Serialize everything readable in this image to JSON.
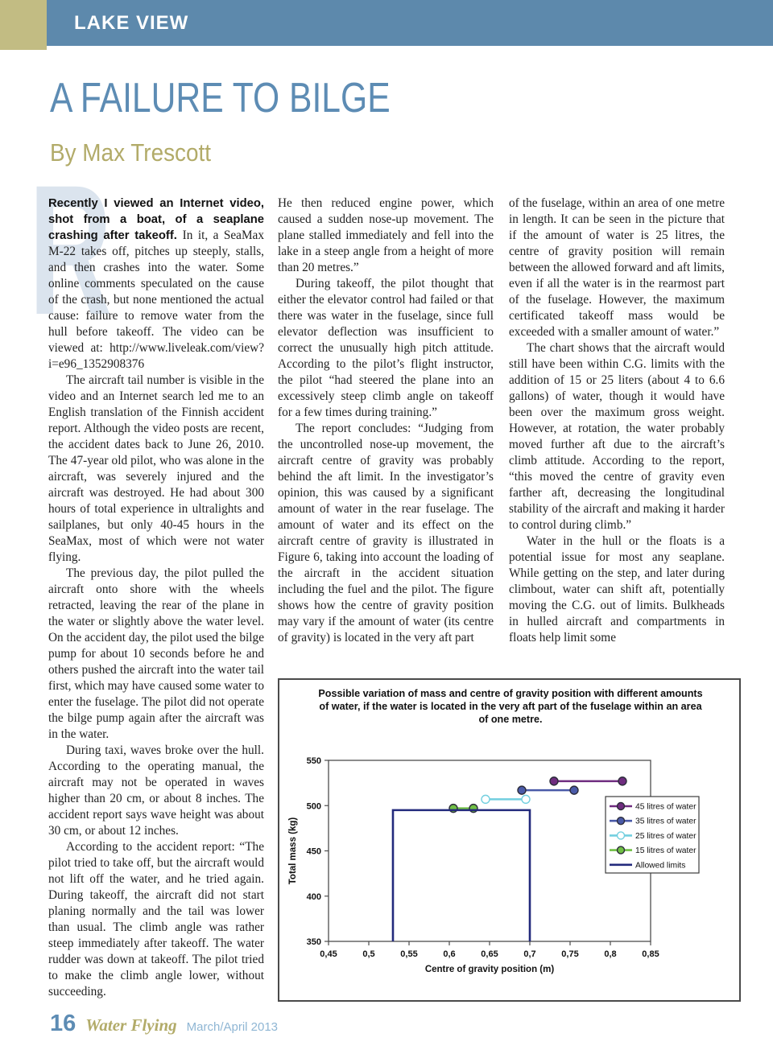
{
  "header": {
    "section": "LAKE VIEW"
  },
  "article": {
    "title": "A FAILURE TO BILGE",
    "byline": "By Max Trescott",
    "dropcap": "R",
    "columns": [
      {
        "paragraphs": [
          {
            "indent": false,
            "lead": "Recently I viewed an Internet video, shot from a boat, of a seaplane crashing after takeoff.",
            "text": "In it, a SeaMax M-22 takes off, pitches up steeply, stalls, and then crashes into the water. Some online comments speculated on the cause of the crash, but none mentioned the actual cause: failure to remove water from the hull before takeoff. The video can be viewed at: http://www.liveleak.com/view?i=e96_1352908376"
          },
          {
            "indent": true,
            "text": "The aircraft tail number is visible in the video and an Internet search led me to an English translation of the Finnish accident report. Although the video posts are recent, the accident dates back to June 26, 2010. The 47-year old pilot, who was alone in the aircraft, was severely injured and the aircraft was destroyed. He had about 300 hours of total experience in ultralights and sailplanes, but only 40-45 hours in the SeaMax, most of which were not water flying."
          },
          {
            "indent": true,
            "text": "The previous day, the pilot pulled the aircraft onto shore with the wheels retracted, leaving the rear of the plane in the water or slightly above the water level. On the accident day, the pilot used the bilge pump for about 10 seconds before he and others pushed the aircraft into the water tail first, which may have caused some water to enter the fuselage. The pilot did not operate the bilge pump again after the aircraft was in the water."
          },
          {
            "indent": true,
            "text": "During taxi, waves broke over the hull. According to the operating manual, the aircraft may not be operated in waves higher than 20 cm, or about 8 inches. The accident report says wave height was about 30 cm, or about 12 inches."
          },
          {
            "indent": true,
            "text": "According to the accident report: “The pilot tried to take off, but the aircraft would not lift off the water, and he tried again. During takeoff, the aircraft did not start planing normally and the tail was lower than usual. The climb angle was rather steep immediately after takeoff. The water rudder was down at takeoff. The pilot tried to make the climb angle lower, without succeeding."
          }
        ]
      },
      {
        "paragraphs": [
          {
            "indent": false,
            "text": "He then reduced engine power, which caused a sudden nose-up movement. The plane stalled immediately and fell into the lake in a steep angle from a height of more than 20 metres.”"
          },
          {
            "indent": true,
            "text": "During takeoff, the pilot thought that either the elevator control had failed or that there was water in the fuselage, since full elevator deflection was insufficient to correct the unusually high pitch attitude. According to the pilot’s flight instructor, the pilot “had steered the plane into an excessively steep climb angle on takeoff for a few times during training.”"
          },
          {
            "indent": true,
            "text": "The report concludes: “Judging from the uncontrolled nose-up movement, the aircraft centre of gravity was probably behind the aft limit. In the investigator’s opinion, this was caused by a significant amount of water in the rear fuselage. The amount of water and its effect on the aircraft centre of gravity is illustrated in Figure 6, taking into account the loading of the aircraft in the accident situation including the fuel and the pilot. The figure shows how the centre of gravity position may vary if the amount of water (its centre of gravity) is located in the very aft part"
          }
        ]
      },
      {
        "paragraphs": [
          {
            "indent": false,
            "text": "of the fuselage, within an area of one metre in length. It can be seen in the picture that if the amount of water is 25 litres, the centre of gravity position will remain between the allowed forward and aft limits, even if all the water is in the rearmost part of the fuselage. However, the maximum certificated takeoff mass would be exceeded with a smaller amount of water.”"
          },
          {
            "indent": true,
            "text": "The chart shows that the aircraft would still have been within C.G. limits with the addition of 15 or 25 liters (about 4 to 6.6 gallons) of water, though it would have been over the maximum gross weight. However, at rotation, the water probably moved further aft due to the aircraft’s climb attitude. According to the report, “this moved the centre of gravity even farther aft, decreasing the longitudinal stability of the aircraft and making it harder to control during climb.”"
          },
          {
            "indent": true,
            "text": "Water in the hull or the floats is a potential issue for most any seaplane. While getting on the step, and later during climbout, water can shift aft, potentially moving the C.G. out of limits. Bulkheads in hulled aircraft and compartments in floats help limit some"
          }
        ]
      }
    ]
  },
  "footer": {
    "page_number": "16",
    "magazine": "Water Flying",
    "issue": "March/April 2013"
  },
  "colors": {
    "header_band": "#5d89ac",
    "corner_accent": "#c2bc83",
    "title_blue": "#5d8cb4",
    "byline_olive": "#b2ab69"
  },
  "chart_data": {
    "type": "line",
    "title": "Possible variation of mass and centre of gravity position with different amounts of water, if the water is located in the very aft part of the fuselage within an area of one metre.",
    "xlabel": "Centre of gravity position (m)",
    "ylabel": "Total mass (kg)",
    "xlim": [
      0.45,
      0.85
    ],
    "ylim": [
      350,
      550
    ],
    "x_ticks": [
      0.45,
      0.5,
      0.55,
      0.6,
      0.65,
      0.7,
      0.75,
      0.8,
      0.85
    ],
    "x_tick_labels": [
      "0,45",
      "0,5",
      "0,55",
      "0,6",
      "0,65",
      "0,7",
      "0,75",
      "0,8",
      "0,85"
    ],
    "y_ticks": [
      350,
      400,
      450,
      500,
      550
    ],
    "grid": false,
    "legend_position": "inside-right",
    "series": [
      {
        "name": "45 litres of water",
        "color": "#6f2c7f",
        "marker": "filled",
        "points": [
          [
            0.73,
            527
          ],
          [
            0.815,
            527
          ]
        ]
      },
      {
        "name": "35 litres of water",
        "color": "#4a5aa8",
        "marker": "filled",
        "points": [
          [
            0.69,
            517
          ],
          [
            0.755,
            517
          ]
        ]
      },
      {
        "name": "25 litres of water",
        "color": "#72cfdf",
        "marker": "open",
        "points": [
          [
            0.645,
            507
          ],
          [
            0.695,
            507
          ]
        ]
      },
      {
        "name": "15 litres of water",
        "color": "#70bf45",
        "marker": "filled",
        "points": [
          [
            0.605,
            497
          ],
          [
            0.63,
            497
          ]
        ]
      },
      {
        "name": "Allowed limits",
        "color": "#232a7c",
        "marker": "none",
        "points": [
          [
            0.53,
            350
          ],
          [
            0.53,
            495
          ],
          [
            0.7,
            495
          ],
          [
            0.7,
            350
          ]
        ]
      }
    ]
  }
}
